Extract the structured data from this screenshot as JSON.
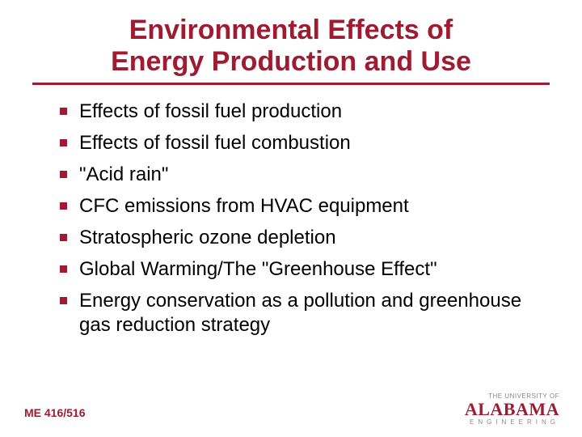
{
  "colors": {
    "accent": "#9e1b32",
    "text": "#000000",
    "bg": "#ffffff",
    "logo_gray": "#8a8a8a"
  },
  "title": {
    "line1": "Environmental Effects of",
    "line2": "Energy Production and Use",
    "fontsize": 34,
    "color": "#9e1b32",
    "rule_color": "#9e1b32",
    "rule_width": 3
  },
  "bullets": {
    "fontsize": 24,
    "marker_color": "#9e1b32",
    "text_color": "#000000",
    "items": [
      "Effects of fossil fuel production",
      "Effects of fossil fuel combustion",
      "\"Acid rain\"",
      "CFC emissions from HVAC equipment",
      "Stratospheric ozone depletion",
      "Global Warming/The \"Greenhouse Effect\"",
      "Energy conservation as a pollution and greenhouse gas reduction strategy"
    ]
  },
  "footer": {
    "course_code": "ME 416/516",
    "color": "#9e1b32"
  },
  "logo": {
    "top": "THE UNIVERSITY OF",
    "main": "ALABAMA",
    "sub": "ENGINEERING",
    "main_color": "#9e1b32"
  }
}
